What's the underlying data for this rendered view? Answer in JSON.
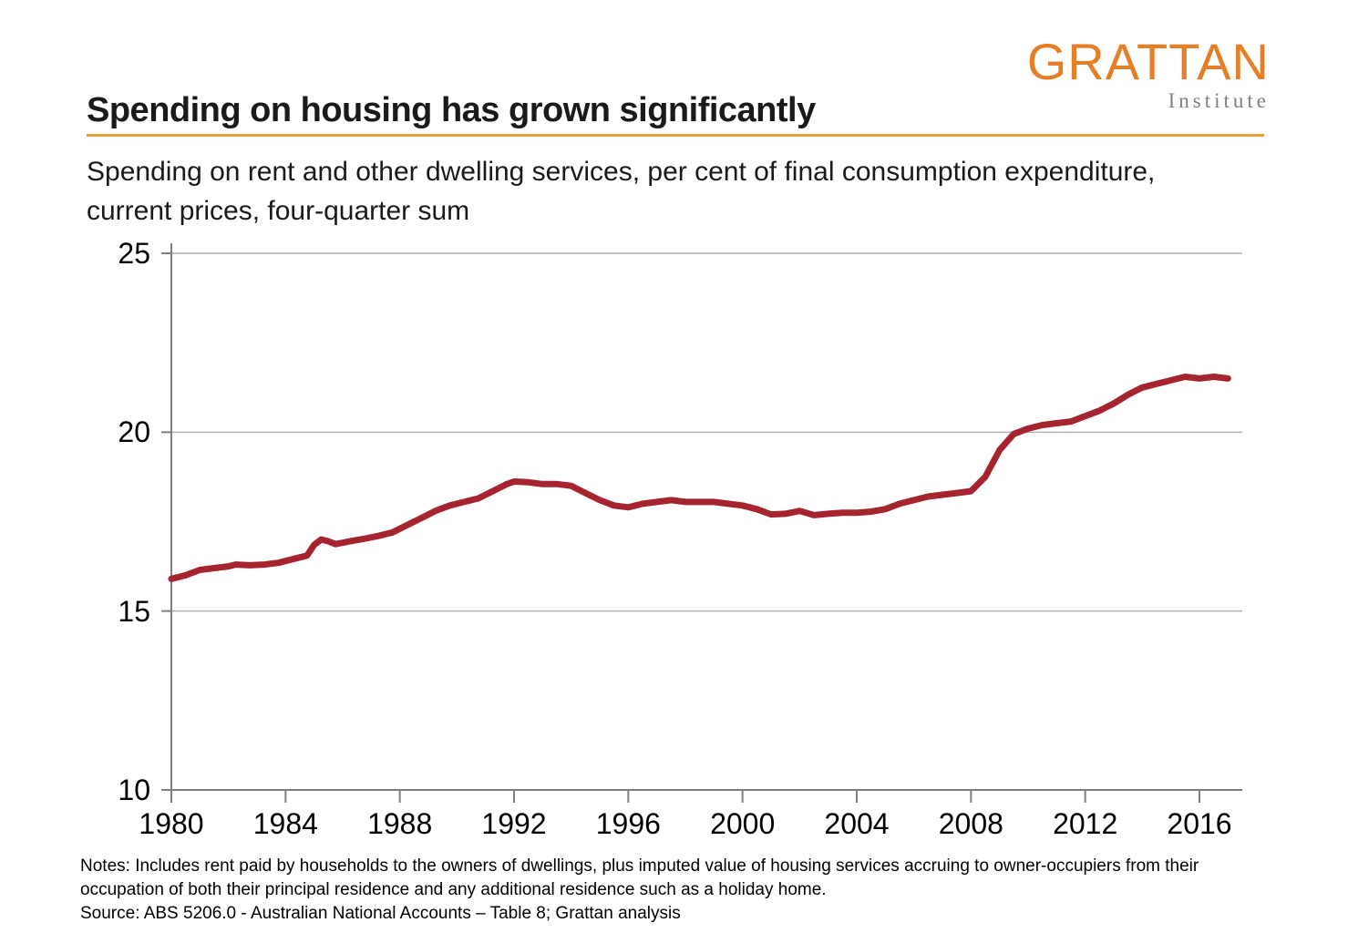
{
  "logo": {
    "word": "GRATTAN",
    "word_color": "#E67E26",
    "subtitle": "Institute",
    "subtitle_color": "#7f8083"
  },
  "header": {
    "title": "Spending on housing has grown significantly",
    "underline_color": "#E8A03D",
    "subtitle_line1": "Spending on rent and other dwelling services, per cent of final consumption expenditure,",
    "subtitle_line2": "current prices, four-quarter sum"
  },
  "footer": {
    "notes_line1": "Notes: Includes rent paid by households to the owners of dwellings, plus imputed value of housing services accruing to owner-occupiers from their",
    "notes_line2": "occupation of both their principal residence and any additional residence such as a holiday home.",
    "source_line": "Source: ABS 5206.0 - Australian National Accounts – Table 8; Grattan analysis"
  },
  "chart_data": {
    "type": "line",
    "title": "Spending on housing has grown significantly",
    "subtitle": "Spending on rent and other dwelling services, per cent of final consumption expenditure, current prices, four-quarter sum",
    "xlabel": "",
    "ylabel": "",
    "xlim": [
      1980,
      2017.5
    ],
    "ylim": [
      10,
      25
    ],
    "x_ticks": [
      1980,
      1984,
      1988,
      1992,
      1996,
      2000,
      2004,
      2008,
      2012,
      2016
    ],
    "y_ticks": [
      10,
      15,
      20,
      25
    ],
    "grid": "horizontal",
    "gridline_color": "#b0b0b0",
    "axis_color": "#7f7f7f",
    "line_width": 7,
    "legend": "none",
    "series": [
      {
        "name": "Spending on rent and other dwelling services, per cent of final consumption expenditure",
        "color": "#A52430",
        "points": [
          [
            1980.0,
            15.9
          ],
          [
            1980.5,
            16.0
          ],
          [
            1981.0,
            16.15
          ],
          [
            1981.5,
            16.2
          ],
          [
            1982.0,
            16.25
          ],
          [
            1982.25,
            16.3
          ],
          [
            1982.75,
            16.28
          ],
          [
            1983.25,
            16.3
          ],
          [
            1983.75,
            16.35
          ],
          [
            1984.25,
            16.45
          ],
          [
            1984.75,
            16.55
          ],
          [
            1985.0,
            16.85
          ],
          [
            1985.25,
            17.0
          ],
          [
            1985.5,
            16.95
          ],
          [
            1985.75,
            16.87
          ],
          [
            1986.25,
            16.95
          ],
          [
            1986.75,
            17.02
          ],
          [
            1987.25,
            17.1
          ],
          [
            1987.75,
            17.2
          ],
          [
            1988.25,
            17.4
          ],
          [
            1988.75,
            17.6
          ],
          [
            1989.25,
            17.8
          ],
          [
            1989.75,
            17.95
          ],
          [
            1990.25,
            18.05
          ],
          [
            1990.75,
            18.15
          ],
          [
            1991.25,
            18.35
          ],
          [
            1991.75,
            18.55
          ],
          [
            1992.0,
            18.62
          ],
          [
            1992.5,
            18.6
          ],
          [
            1993.0,
            18.55
          ],
          [
            1993.5,
            18.55
          ],
          [
            1994.0,
            18.5
          ],
          [
            1994.5,
            18.3
          ],
          [
            1995.0,
            18.1
          ],
          [
            1995.5,
            17.95
          ],
          [
            1996.0,
            17.9
          ],
          [
            1996.5,
            18.0
          ],
          [
            1997.0,
            18.05
          ],
          [
            1997.5,
            18.1
          ],
          [
            1998.0,
            18.05
          ],
          [
            1998.5,
            18.05
          ],
          [
            1999.0,
            18.05
          ],
          [
            1999.5,
            18.0
          ],
          [
            2000.0,
            17.95
          ],
          [
            2000.5,
            17.85
          ],
          [
            2001.0,
            17.7
          ],
          [
            2001.5,
            17.72
          ],
          [
            2002.0,
            17.8
          ],
          [
            2002.5,
            17.68
          ],
          [
            2003.0,
            17.72
          ],
          [
            2003.5,
            17.75
          ],
          [
            2004.0,
            17.75
          ],
          [
            2004.5,
            17.78
          ],
          [
            2005.0,
            17.85
          ],
          [
            2005.5,
            18.0
          ],
          [
            2006.0,
            18.1
          ],
          [
            2006.5,
            18.2
          ],
          [
            2007.0,
            18.25
          ],
          [
            2007.5,
            18.3
          ],
          [
            2008.0,
            18.35
          ],
          [
            2008.5,
            18.75
          ],
          [
            2009.0,
            19.5
          ],
          [
            2009.5,
            19.95
          ],
          [
            2010.0,
            20.1
          ],
          [
            2010.5,
            20.2
          ],
          [
            2011.0,
            20.25
          ],
          [
            2011.5,
            20.3
          ],
          [
            2012.0,
            20.45
          ],
          [
            2012.5,
            20.6
          ],
          [
            2013.0,
            20.8
          ],
          [
            2013.5,
            21.05
          ],
          [
            2014.0,
            21.25
          ],
          [
            2014.5,
            21.35
          ],
          [
            2015.0,
            21.45
          ],
          [
            2015.5,
            21.55
          ],
          [
            2016.0,
            21.5
          ],
          [
            2016.5,
            21.55
          ],
          [
            2017.0,
            21.5
          ]
        ]
      }
    ]
  }
}
